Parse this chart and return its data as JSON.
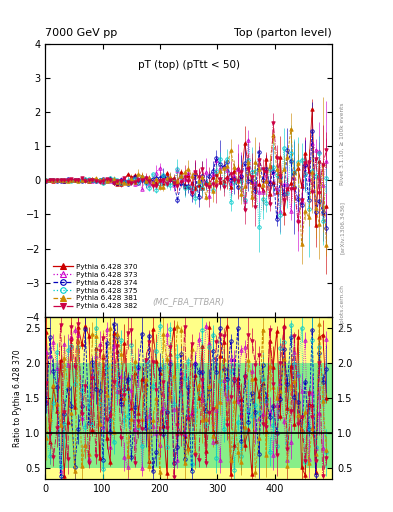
{
  "title_left": "7000 GeV pp",
  "title_right": "Top (parton level)",
  "main_title": "pT (top) (pTtt < 50)",
  "watermark": "(MC_FBA_TTBAR)",
  "right_label": "Rivet 3.1.10, ≥ 100k events",
  "arxiv_label": "[arXiv:1306.3436]",
  "mcplots_label": "mcplots.cern.ch",
  "ylabel_ratio": "Ratio to Pythia 6.428 370",
  "xlim": [
    0,
    500
  ],
  "ylim_main": [
    -4,
    4
  ],
  "ylim_ratio": [
    0.35,
    2.65
  ],
  "main_yticks": [
    -4,
    -3,
    -2,
    -1,
    0,
    1,
    2,
    3,
    4
  ],
  "ratio_yticks": [
    0.5,
    1.0,
    1.5,
    2.0,
    2.5
  ],
  "xticks": [
    0,
    100,
    200,
    300,
    400
  ],
  "series": [
    {
      "label": "Pythia 6.428 370",
      "color": "#cc0000",
      "marker": "^",
      "linestyle": "-",
      "open": false
    },
    {
      "label": "Pythia 6.428 373",
      "color": "#cc00cc",
      "marker": "^",
      "linestyle": ":",
      "open": true
    },
    {
      "label": "Pythia 6.428 374",
      "color": "#0000bb",
      "marker": "o",
      "linestyle": "--",
      "open": true
    },
    {
      "label": "Pythia 6.428 375",
      "color": "#00cccc",
      "marker": "o",
      "linestyle": ":",
      "open": true
    },
    {
      "label": "Pythia 6.428 381",
      "color": "#cc8800",
      "marker": "^",
      "linestyle": "--",
      "open": false
    },
    {
      "label": "Pythia 6.428 382",
      "color": "#cc0044",
      "marker": "v",
      "linestyle": "-.",
      "open": false
    }
  ],
  "band_yellow": "#ffff88",
  "band_green": "#88ee88",
  "ratio_ref_color": "#000000",
  "background_color": "#ffffff"
}
